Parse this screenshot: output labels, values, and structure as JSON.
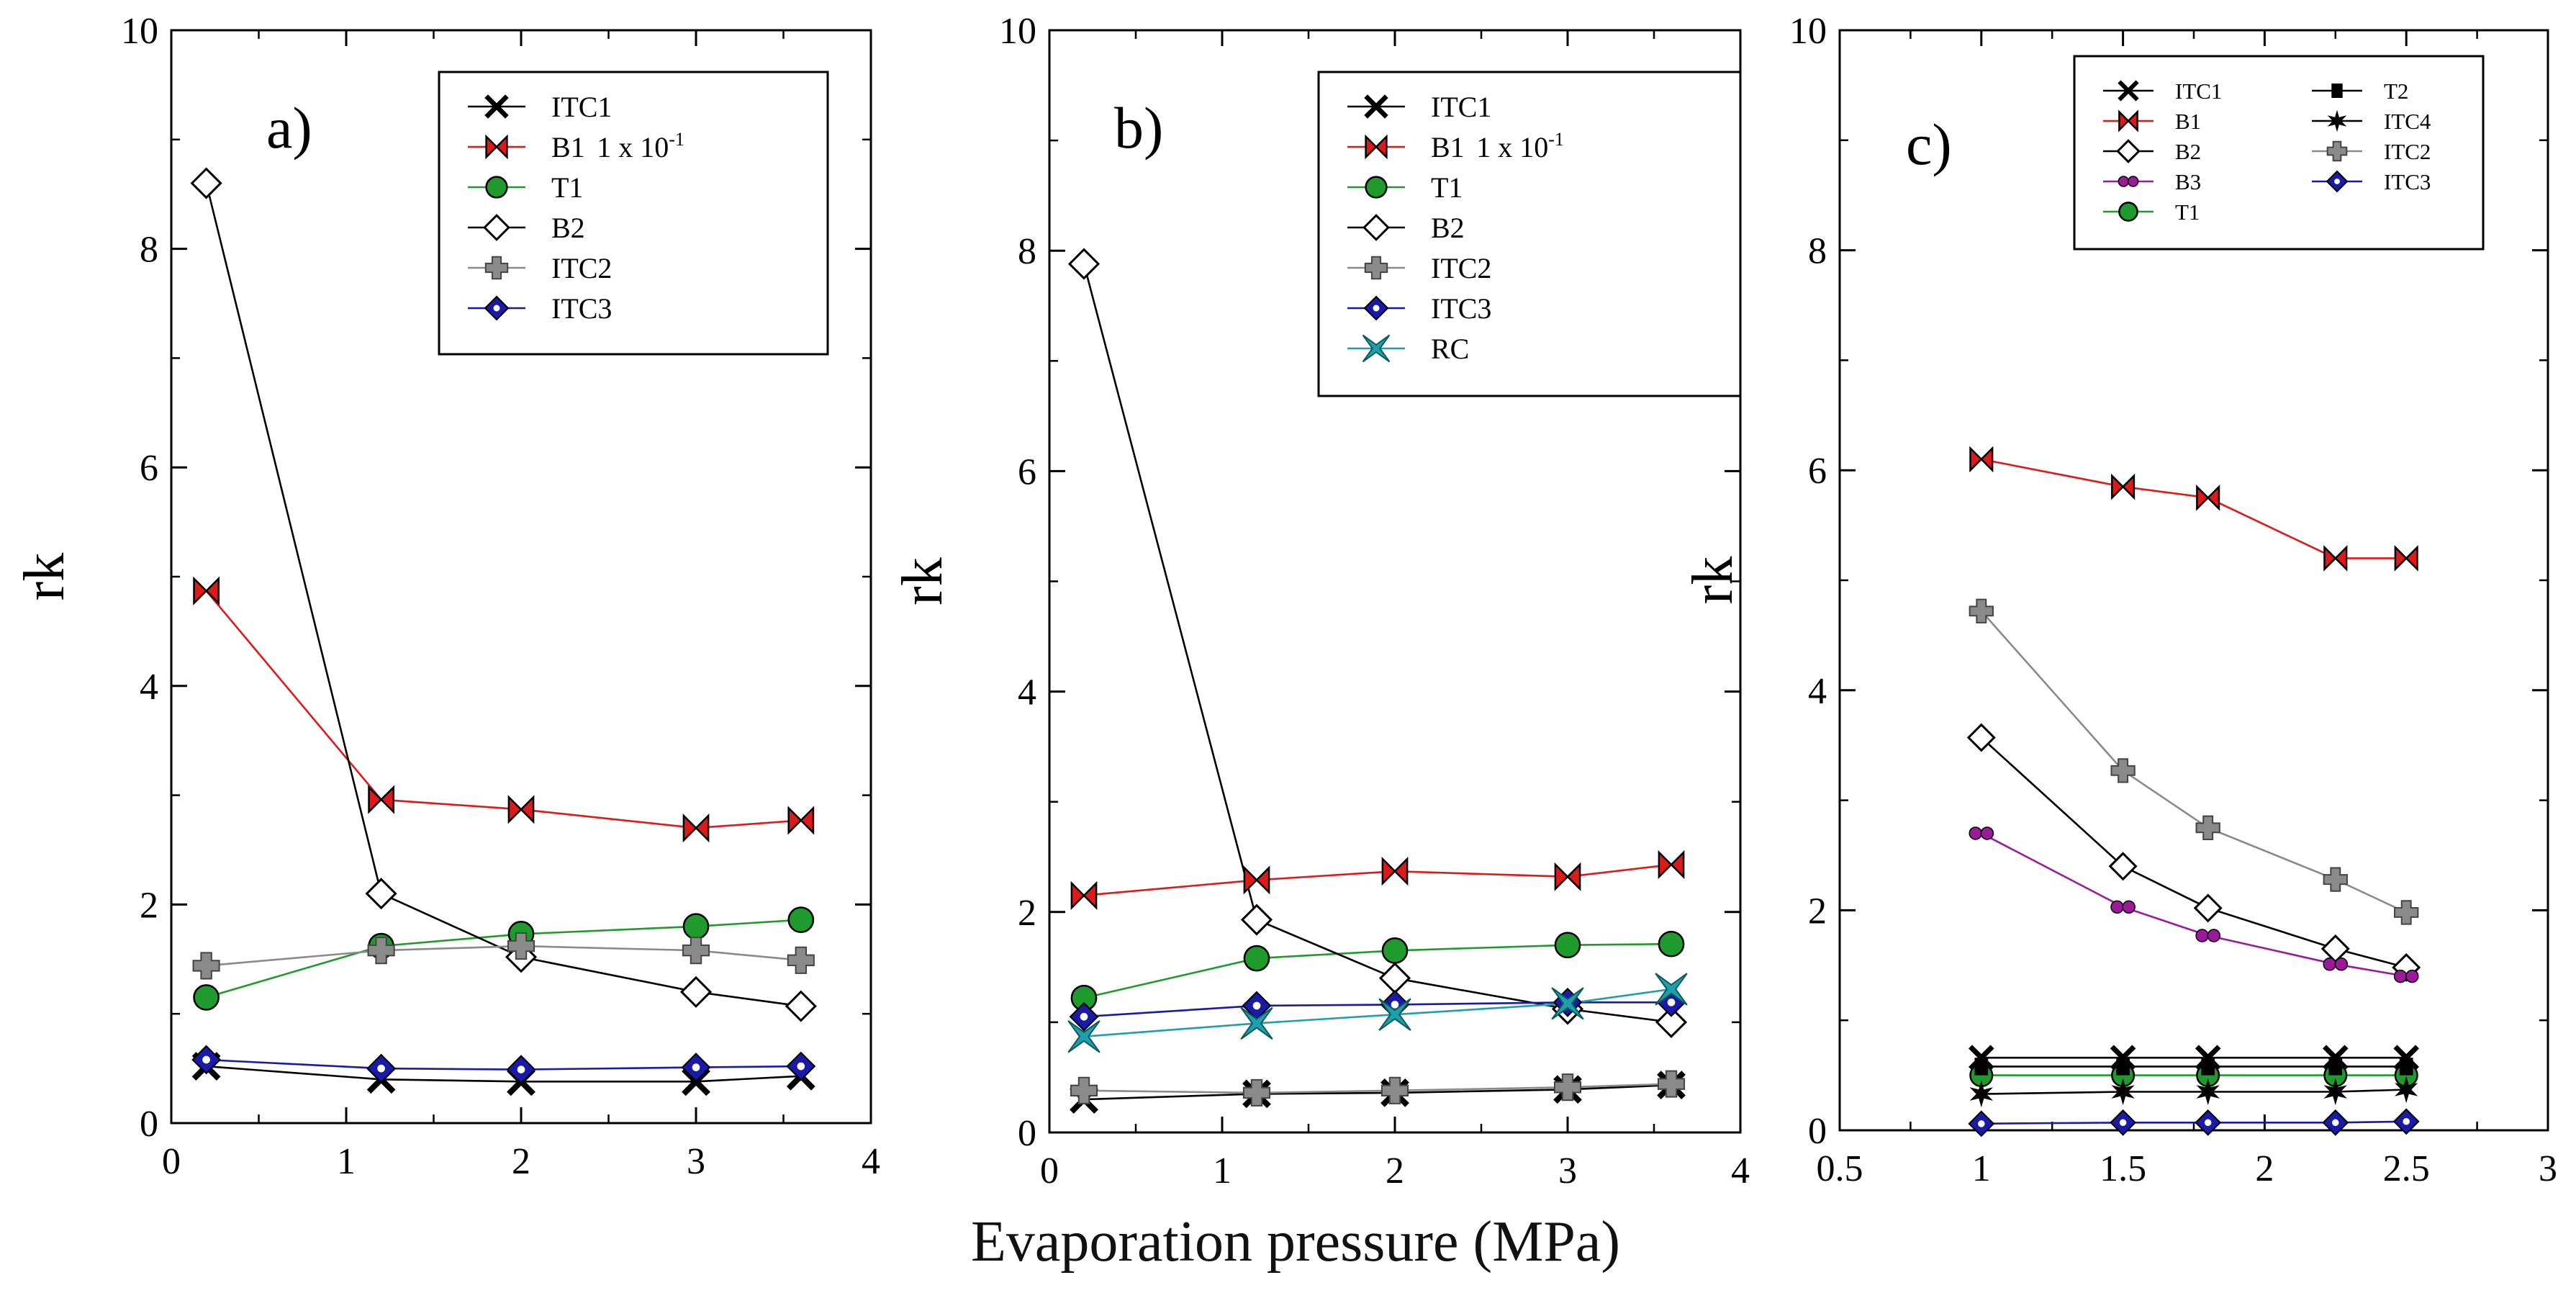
{
  "figure": {
    "xlabel": "Evaporation pressure (MPa)"
  },
  "colors": {
    "black": "#000000",
    "red": "#dd1a1a",
    "green": "#1f9a2d",
    "gray": "#9a9a9a",
    "blue": "#1a1aa8",
    "teal": "#1f9faa",
    "purple": "#9a1a9a"
  },
  "chart_data": [
    {
      "type": "line",
      "panel_label": "a)",
      "ylabel": "rk",
      "xlim": [
        0,
        4
      ],
      "ylim": [
        0,
        10
      ],
      "xticks": [
        "0",
        "1",
        "2",
        "3",
        "4"
      ],
      "yticks": [
        "0",
        "2",
        "4",
        "6",
        "8",
        "10"
      ],
      "legend_position": "top-right",
      "series": [
        {
          "name": "ITC1",
          "marker": "x",
          "color": "#000000",
          "x": [
            0.2,
            1.2,
            2.0,
            3.0,
            3.6
          ],
          "values": [
            0.52,
            0.4,
            0.38,
            0.38,
            0.43
          ]
        },
        {
          "name": "B1",
          "legend_suffix": "1 x 10",
          "legend_exp": "-1",
          "marker": "bowtie",
          "color": "#dd1a1a",
          "x": [
            0.2,
            1.2,
            2.0,
            3.0,
            3.6
          ],
          "values": [
            4.87,
            2.96,
            2.87,
            2.7,
            2.77
          ]
        },
        {
          "name": "T1",
          "marker": "circle",
          "color": "#1f9a2d",
          "x": [
            0.2,
            1.2,
            2.0,
            3.0,
            3.6
          ],
          "values": [
            1.15,
            1.62,
            1.73,
            1.8,
            1.86
          ]
        },
        {
          "name": "B2",
          "marker": "diamond-open",
          "color": "#000000",
          "x": [
            0.2,
            1.2,
            2.0,
            3.0,
            3.6
          ],
          "values": [
            8.6,
            2.1,
            1.52,
            1.2,
            1.07
          ]
        },
        {
          "name": "ITC2",
          "marker": "plus",
          "color": "#9a9a9a",
          "x": [
            0.2,
            1.2,
            2.0,
            3.0,
            3.6
          ],
          "values": [
            1.44,
            1.58,
            1.62,
            1.58,
            1.49
          ]
        },
        {
          "name": "ITC3",
          "marker": "diamond-blue",
          "color": "#1a1aa8",
          "x": [
            0.2,
            1.2,
            2.0,
            3.0,
            3.6
          ],
          "values": [
            0.58,
            0.5,
            0.49,
            0.51,
            0.52
          ]
        }
      ]
    },
    {
      "type": "line",
      "panel_label": "b)",
      "ylabel": "rk",
      "xlim": [
        0,
        4
      ],
      "ylim": [
        0,
        10
      ],
      "xticks": [
        "0",
        "1",
        "2",
        "3",
        "4"
      ],
      "yticks": [
        "0",
        "2",
        "4",
        "6",
        "8",
        "10"
      ],
      "legend_position": "top-right",
      "series": [
        {
          "name": "ITC1",
          "marker": "x",
          "color": "#000000",
          "x": [
            0.2,
            1.2,
            2.0,
            3.0,
            3.6
          ],
          "values": [
            0.3,
            0.35,
            0.36,
            0.39,
            0.43
          ]
        },
        {
          "name": "B1",
          "legend_suffix": "1 x 10",
          "legend_exp": "-1",
          "marker": "bowtie",
          "color": "#dd1a1a",
          "x": [
            0.2,
            1.2,
            2.0,
            3.0,
            3.6
          ],
          "values": [
            2.15,
            2.29,
            2.37,
            2.32,
            2.43
          ]
        },
        {
          "name": "T1",
          "marker": "circle",
          "color": "#1f9a2d",
          "x": [
            0.2,
            1.2,
            2.0,
            3.0,
            3.6
          ],
          "values": [
            1.22,
            1.58,
            1.65,
            1.7,
            1.71
          ]
        },
        {
          "name": "B2",
          "marker": "diamond-open",
          "color": "#000000",
          "x": [
            0.2,
            1.2,
            2.0,
            3.0,
            3.6
          ],
          "values": [
            7.88,
            1.93,
            1.4,
            1.12,
            1.0
          ]
        },
        {
          "name": "ITC2",
          "marker": "plus",
          "color": "#9a9a9a",
          "x": [
            0.2,
            1.2,
            2.0,
            3.0,
            3.6
          ],
          "values": [
            0.38,
            0.36,
            0.38,
            0.41,
            0.44
          ]
        },
        {
          "name": "ITC3",
          "marker": "diamond-blue",
          "color": "#1a1aa8",
          "x": [
            0.2,
            1.2,
            2.0,
            3.0,
            3.6
          ],
          "values": [
            1.05,
            1.15,
            1.16,
            1.18,
            1.18
          ]
        },
        {
          "name": "RC",
          "marker": "star4",
          "color": "#1f9faa",
          "x": [
            0.2,
            1.2,
            2.0,
            3.0,
            3.6
          ],
          "values": [
            0.87,
            0.99,
            1.07,
            1.17,
            1.3
          ]
        }
      ]
    },
    {
      "type": "line",
      "panel_label": "c)",
      "ylabel": "rk",
      "xlim": [
        0.5,
        3
      ],
      "ylim": [
        0,
        10
      ],
      "xticks": [
        "0.5",
        "1",
        "1.5",
        "2",
        "2.5",
        "3"
      ],
      "yticks": [
        "0",
        "2",
        "4",
        "6",
        "8",
        "10"
      ],
      "legend_position": "top-right",
      "series": [
        {
          "name": "ITC1",
          "marker": "x",
          "color": "#000000",
          "x": [
            1.0,
            1.5,
            1.8,
            2.25,
            2.5
          ],
          "values": [
            0.66,
            0.66,
            0.66,
            0.66,
            0.66
          ]
        },
        {
          "name": "B1",
          "marker": "bowtie",
          "color": "#dd1a1a",
          "x": [
            1.0,
            1.5,
            1.8,
            2.25,
            2.5
          ],
          "values": [
            6.1,
            5.85,
            5.75,
            5.2,
            5.2
          ]
        },
        {
          "name": "B2",
          "marker": "diamond-open",
          "color": "#000000",
          "x": [
            1.0,
            1.5,
            1.8,
            2.25,
            2.5
          ],
          "values": [
            3.57,
            2.4,
            2.02,
            1.65,
            1.48
          ]
        },
        {
          "name": "B3",
          "marker": "double-circle",
          "color": "#9a1a9a",
          "x": [
            1.0,
            1.5,
            1.8,
            2.25,
            2.5
          ],
          "values": [
            2.7,
            2.03,
            1.77,
            1.51,
            1.4
          ]
        },
        {
          "name": "T1",
          "marker": "circle",
          "color": "#1f9a2d",
          "x": [
            1.0,
            1.5,
            1.8,
            2.25,
            2.5
          ],
          "values": [
            0.5,
            0.5,
            0.5,
            0.5,
            0.5
          ]
        },
        {
          "name": "T2",
          "marker": "square",
          "color": "#000000",
          "x": [
            1.0,
            1.5,
            1.8,
            2.25,
            2.5
          ],
          "values": [
            0.58,
            0.58,
            0.58,
            0.58,
            0.58
          ]
        },
        {
          "name": "ITC4",
          "marker": "star6",
          "color": "#000000",
          "x": [
            1.0,
            1.5,
            1.8,
            2.25,
            2.5
          ],
          "values": [
            0.33,
            0.35,
            0.35,
            0.35,
            0.37
          ]
        },
        {
          "name": "ITC2",
          "marker": "plus",
          "color": "#9a9a9a",
          "x": [
            1.0,
            1.5,
            1.8,
            2.25,
            2.5
          ],
          "values": [
            4.72,
            3.27,
            2.75,
            2.28,
            1.98
          ]
        },
        {
          "name": "ITC3",
          "marker": "diamond-blue",
          "color": "#1a1aa8",
          "x": [
            1.0,
            1.5,
            1.8,
            2.25,
            2.5
          ],
          "values": [
            0.06,
            0.07,
            0.07,
            0.07,
            0.08
          ]
        }
      ]
    }
  ]
}
